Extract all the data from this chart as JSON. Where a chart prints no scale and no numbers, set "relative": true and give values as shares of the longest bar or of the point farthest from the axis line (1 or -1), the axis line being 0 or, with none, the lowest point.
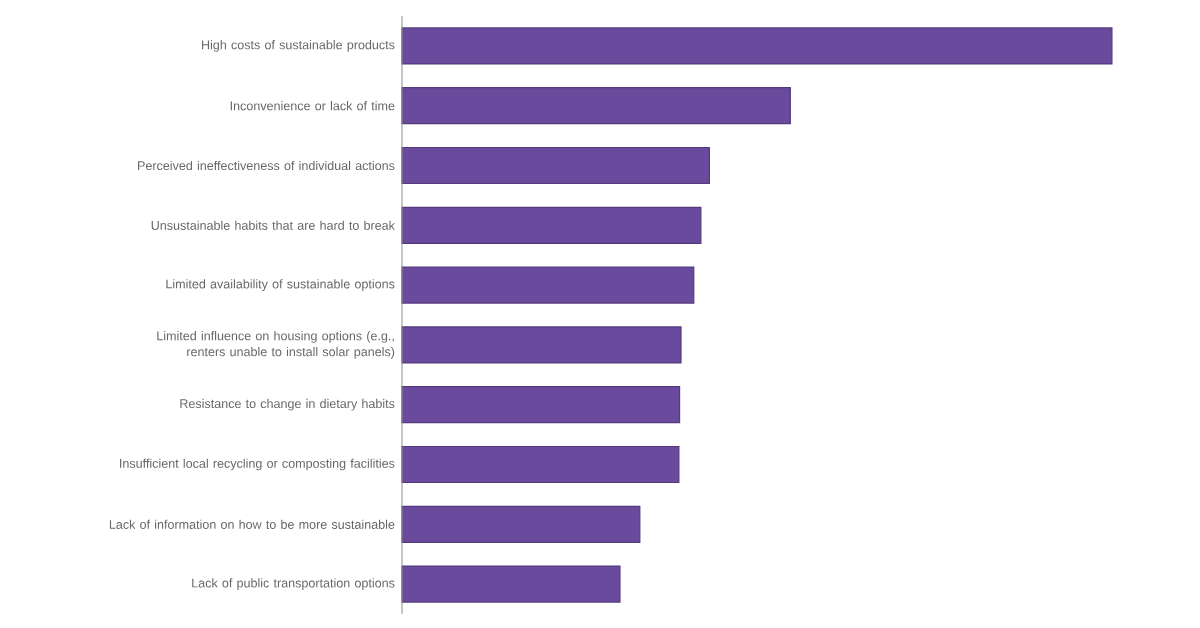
{
  "chart_data": {
    "type": "bar",
    "orientation": "horizontal",
    "relative": true,
    "color": "#6a4a9c",
    "categories": [
      "High costs of sustainable products",
      "Inconvenience or lack of time",
      "Perceived ineffectiveness of individual actions",
      "Unsustainable habits that are hard to break",
      "Limited availability of sustainable options",
      "Limited influence on housing options (e.g., renters unable to install solar panels)",
      "Resistance to change in dietary habits",
      "Insufficient local recycling or composting facilities",
      "Lack of information on how to be more sustainable",
      "Lack of public transportation options"
    ],
    "values": [
      1,
      0.547,
      0.433,
      0.421,
      0.411,
      0.393,
      0.391,
      0.39,
      0.335,
      0.307
    ]
  }
}
